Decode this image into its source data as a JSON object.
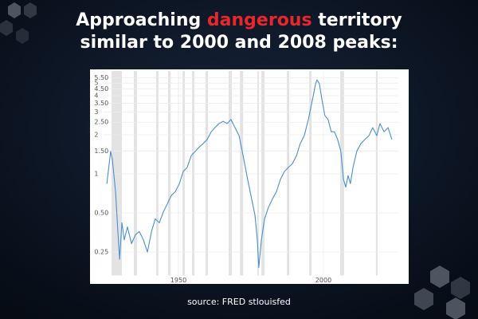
{
  "header": {
    "title_start": "Approaching",
    "title_highlight": "dangerous",
    "title_end": "territory",
    "title_line2": "similar to 2000 and 2008 peaks:"
  },
  "chart_data": {
    "type": "line",
    "x": [
      1925.3,
      1926.6,
      1927.2,
      1928.3,
      1929.1,
      1929.7,
      1930.5,
      1931.3,
      1932.4,
      1933.8,
      1935.2,
      1936.5,
      1937.9,
      1939.3,
      1940.7,
      1942.0,
      1943.4,
      1944.8,
      1946.2,
      1947.5,
      1948.9,
      1950.3,
      1951.6,
      1953.0,
      1954.4,
      1955.8,
      1957.1,
      1958.5,
      1959.9,
      1961.3,
      1962.6,
      1964.0,
      1965.4,
      1966.8,
      1968.1,
      1969.5,
      1970.9,
      1972.3,
      1973.6,
      1975.0,
      1976.4,
      1977.2,
      1977.7,
      1978.6,
      1979.7,
      1981.0,
      1982.4,
      1983.8,
      1985.2,
      1986.5,
      1987.9,
      1989.3,
      1990.7,
      1992.0,
      1993.4,
      1994.8,
      1996.2,
      1997.3,
      1997.8,
      1998.6,
      1999.5,
      2000.5,
      2001.6,
      2002.7,
      2003.8,
      2004.9,
      2006.0,
      2006.9,
      2007.7,
      2008.5,
      2009.3,
      2010.2,
      2011.5,
      2012.9,
      2014.3,
      2015.7,
      2017.0,
      2018.4,
      2019.5,
      2020.9,
      2022.3,
      2023.6
    ],
    "series": [
      {
        "color": "#4a8fd0",
        "values": [
          0.84,
          1.49,
          1.29,
          0.73,
          0.36,
          0.22,
          0.42,
          0.31,
          0.39,
          0.29,
          0.34,
          0.36,
          0.31,
          0.25,
          0.36,
          0.45,
          0.42,
          0.51,
          0.59,
          0.68,
          0.73,
          0.84,
          1.04,
          1.12,
          1.38,
          1.49,
          1.6,
          1.71,
          1.84,
          2.11,
          2.27,
          2.44,
          2.54,
          2.44,
          2.62,
          2.27,
          1.97,
          1.38,
          0.97,
          0.68,
          0.48,
          0.31,
          0.19,
          0.31,
          0.45,
          0.55,
          0.64,
          0.73,
          0.91,
          1.04,
          1.12,
          1.2,
          1.38,
          1.71,
          1.97,
          2.62,
          3.72,
          4.94,
          5.3,
          4.94,
          3.72,
          2.81,
          2.62,
          2.11,
          2.11,
          1.84,
          1.49,
          0.91,
          0.79,
          0.97,
          0.84,
          1.12,
          1.49,
          1.71,
          1.84,
          1.97,
          2.27,
          1.97,
          2.44,
          2.11,
          2.27,
          1.84
        ]
      }
    ],
    "recessions": [
      [
        1926.9,
        1930.5
      ],
      [
        1934.6,
        1935.7
      ],
      [
        1942.3,
        1943.1
      ],
      [
        1946.4,
        1947.3
      ],
      [
        1951.4,
        1952.2
      ],
      [
        1954.7,
        1955.5
      ],
      [
        1959.3,
        1960.2
      ],
      [
        1967.3,
        1968.4
      ],
      [
        1971.2,
        1972.3
      ],
      [
        1977.2,
        1977.7
      ],
      [
        1978.6,
        1979.7
      ],
      [
        1987.4,
        1988.2
      ],
      [
        1995.1,
        1995.9
      ],
      [
        2005.8,
        2007.1
      ],
      [
        2018.1,
        2018.7
      ]
    ],
    "recession_color": "#e3e3e3",
    "xlim": [
      1924,
      2026
    ],
    "xticks": [
      1950,
      2000
    ],
    "ylim": [
      0.165,
      6.2
    ],
    "ylog": true,
    "grid": true,
    "yticks": [
      {
        "value": 0.25,
        "label": "0.25"
      },
      {
        "value": 0.5,
        "label": "0.50"
      },
      1,
      {
        "value": 1.5,
        "label": "1.50"
      },
      2,
      {
        "value": 2.5,
        "label": "2.50"
      },
      3,
      {
        "value": 3.5,
        "label": "3.50"
      },
      4,
      {
        "value": 4.5,
        "label": "4.50"
      },
      5,
      {
        "value": 5.5,
        "label": "5.50"
      }
    ]
  },
  "footer": {
    "source": "source: FRED stlouisfed"
  }
}
